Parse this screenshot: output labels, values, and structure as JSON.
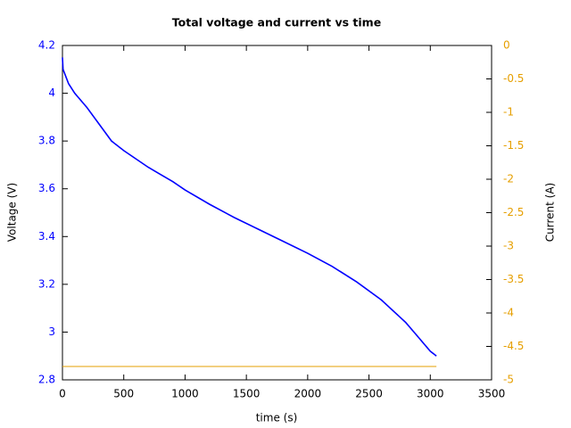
{
  "chart_data": {
    "type": "line",
    "title": "Total voltage and current vs time",
    "xlabel": "time (s)",
    "ylabel": "Voltage (V)",
    "y2label": "Current (A)",
    "xlim": [
      0,
      3500
    ],
    "xticks": [
      0,
      500,
      1000,
      1500,
      2000,
      2500,
      3000,
      3500
    ],
    "ylim": [
      2.8,
      4.2
    ],
    "yticks": [
      2.8,
      3,
      3.2,
      3.4,
      3.6,
      3.8,
      4,
      4.2
    ],
    "ycolor": "#0000ff",
    "y2lim": [
      -5,
      0
    ],
    "y2ticks": [
      -5,
      -4.5,
      -4,
      -3.5,
      -3,
      -2.5,
      -2,
      -1.5,
      -1,
      -0.5,
      0
    ],
    "y2color": "#e69f00",
    "grid": false,
    "series": [
      {
        "name": "Voltage",
        "color": "#0000ff",
        "axis": "y",
        "x": [
          0,
          5,
          50,
          100,
          200,
          300,
          400,
          500,
          600,
          700,
          800,
          900,
          1000,
          1200,
          1400,
          1600,
          1800,
          2000,
          2200,
          2400,
          2600,
          2800,
          2900,
          3000,
          3050
        ],
        "values": [
          4.15,
          4.1,
          4.04,
          4.0,
          3.94,
          3.87,
          3.8,
          3.76,
          3.725,
          3.69,
          3.66,
          3.63,
          3.595,
          3.535,
          3.48,
          3.43,
          3.38,
          3.33,
          3.275,
          3.21,
          3.135,
          3.04,
          2.98,
          2.92,
          2.9
        ]
      },
      {
        "name": "Current",
        "color": "#e69f00",
        "axis": "y2",
        "x": [
          0,
          3050
        ],
        "values": [
          -4.8,
          -4.8
        ]
      }
    ]
  }
}
